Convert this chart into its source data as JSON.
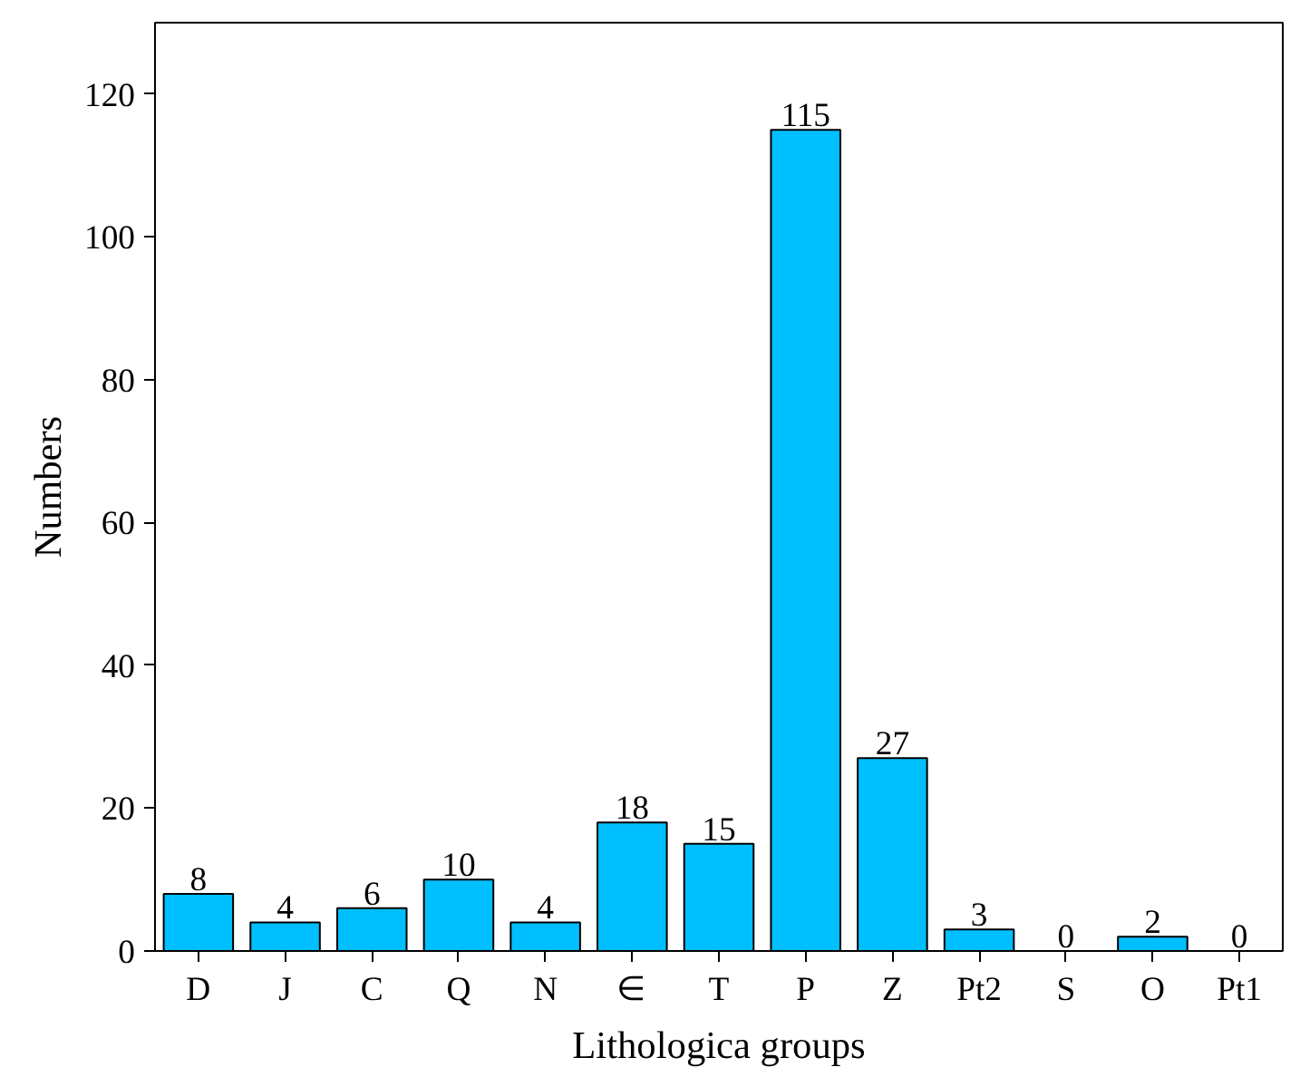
{
  "chart_data": {
    "type": "bar",
    "xlabel": "Lithologica groups",
    "ylabel": "Numbers",
    "categories": [
      "D",
      "J",
      "C",
      "Q",
      "N",
      "∈",
      "T",
      "P",
      "Z",
      "Pt2",
      "S",
      "O",
      "Pt1"
    ],
    "values": [
      8,
      4,
      6,
      10,
      4,
      18,
      15,
      115,
      27,
      3,
      0,
      2,
      0
    ],
    "color": "#00bfff",
    "data_labels": true,
    "ylim": [
      0,
      130
    ],
    "yticks": [
      0,
      20,
      40,
      60,
      80,
      100,
      120
    ],
    "grid": false
  }
}
